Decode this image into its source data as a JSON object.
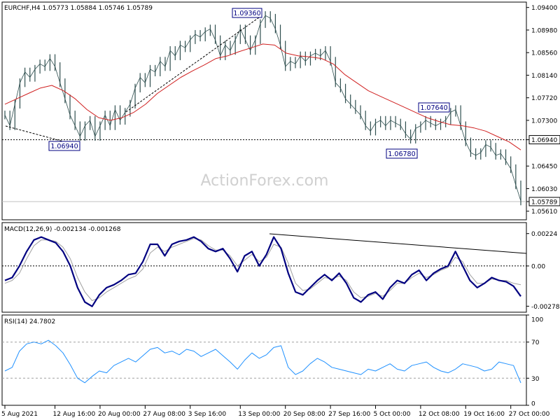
{
  "chart_data": [
    {
      "type": "line",
      "panel": "price",
      "header": {
        "symbol": "EURCHF,H4",
        "open": "1.05773",
        "high": "1.05884",
        "low": "1.05746",
        "close": "1.05789"
      },
      "watermark": "ActionForex.com",
      "ylim": [
        1.0545,
        1.095
      ],
      "y_ticks": [
        {
          "value": 1.094,
          "label": "1.09400"
        },
        {
          "value": 1.0898,
          "label": "1.08980"
        },
        {
          "value": 1.0856,
          "label": "1.08560"
        },
        {
          "value": 1.0814,
          "label": "1.08140"
        },
        {
          "value": 1.0772,
          "label": "1.07720"
        },
        {
          "value": 1.073,
          "label": "1.07300"
        },
        {
          "value": 1.0694,
          "label": "1.06940",
          "highlight": true
        },
        {
          "value": 1.0645,
          "label": "1.06450"
        },
        {
          "value": 1.0603,
          "label": "1.06030"
        },
        {
          "value": 1.05789,
          "label": "1.05789",
          "highlight": true
        },
        {
          "value": 1.0561,
          "label": "1.05610"
        }
      ],
      "series": [
        {
          "name": "price",
          "color": "#2f4f4f",
          "values": [
            1.074,
            1.072,
            1.076,
            1.08,
            1.082,
            1.081,
            1.0825,
            1.0835,
            1.083,
            1.0845,
            1.083,
            1.08,
            1.077,
            1.074,
            1.072,
            1.07,
            1.072,
            1.073,
            1.07,
            1.072,
            1.074,
            1.072,
            1.075,
            1.073,
            1.0745,
            1.076,
            1.079,
            1.081,
            1.08,
            1.0825,
            1.082,
            1.084,
            1.083,
            1.086,
            1.085,
            1.087,
            1.0865,
            1.088,
            1.089,
            1.0885,
            1.0895,
            1.09,
            1.088,
            1.085,
            1.087,
            1.086,
            1.088,
            1.09,
            1.088,
            1.086,
            1.088,
            1.091,
            1.0925,
            1.092,
            1.09,
            1.087,
            1.083,
            1.084,
            1.0835,
            1.085,
            1.084,
            1.085,
            1.0855,
            1.085,
            1.086,
            1.084,
            1.08,
            1.079,
            1.077,
            1.076,
            1.075,
            1.074,
            1.072,
            1.071,
            1.0725,
            1.073,
            1.072,
            1.073,
            1.0725,
            1.072,
            1.0705,
            1.0695,
            1.0715,
            1.072,
            1.073,
            1.0725,
            1.072,
            1.0725,
            1.073,
            1.0745,
            1.075,
            1.072,
            1.069,
            1.067,
            1.0665,
            1.067,
            1.0685,
            1.068,
            1.0665,
            1.0668,
            1.0655,
            1.064,
            1.061,
            1.058
          ]
        },
        {
          "name": "ma",
          "color": "#d02020",
          "values": [
            1.076,
            1.077,
            1.078,
            1.079,
            1.0795,
            1.0785,
            1.077,
            1.075,
            1.0735,
            1.073,
            1.0735,
            1.0745,
            1.076,
            1.078,
            1.0795,
            1.081,
            1.0822,
            1.0833,
            1.0845,
            1.085,
            1.0858,
            1.0865,
            1.0872,
            1.087,
            1.0855,
            1.085,
            1.0848,
            1.0845,
            1.0835,
            1.0815,
            1.08,
            1.0785,
            1.0775,
            1.0765,
            1.0755,
            1.0745,
            1.0735,
            1.0728,
            1.0722,
            1.072,
            1.0716,
            1.071,
            1.07,
            1.069,
            1.0675
          ]
        }
      ],
      "annotations": [
        {
          "label": "1.09360",
          "value": 1.0936
        },
        {
          "label": "1.06940",
          "value": 1.0694
        },
        {
          "label": "1.07640",
          "value": 1.0764
        },
        {
          "label": "1.06780",
          "value": 1.0678
        }
      ],
      "hline": 1.0694
    },
    {
      "type": "line",
      "panel": "macd",
      "label": "MACD(12,26,9) -0.002134 -0.001268",
      "ylim": [
        -0.0032,
        0.003
      ],
      "y_ticks": [
        {
          "value": 0.00224,
          "label": "0.00224"
        },
        {
          "value": 0.0,
          "label": "0.00"
        },
        {
          "value": -0.002785,
          "label": "-0.002785"
        }
      ],
      "series": [
        {
          "name": "macd",
          "color": "#000080",
          "values": [
            -0.001,
            -0.0008,
            0.0,
            0.001,
            0.0018,
            0.002,
            0.0018,
            0.0016,
            0.001,
            0.0,
            -0.0015,
            -0.0025,
            -0.0028,
            -0.002,
            -0.0015,
            -0.0013,
            -0.001,
            -0.0006,
            -0.0005,
            0.0003,
            0.0015,
            0.0015,
            0.0007,
            0.0015,
            0.0017,
            0.0018,
            0.002,
            0.0017,
            0.0012,
            0.001,
            0.0012,
            0.0005,
            -0.0004,
            0.0007,
            0.001,
            0.0,
            0.0008,
            0.002,
            0.0012,
            -0.0005,
            -0.0018,
            -0.002,
            -0.0015,
            -0.001,
            -0.0006,
            -0.001,
            -0.0005,
            -0.0012,
            -0.0022,
            -0.0025,
            -0.002,
            -0.0018,
            -0.0023,
            -0.0015,
            -0.001,
            -0.0012,
            -0.0006,
            -0.0003,
            -0.001,
            -0.0005,
            -0.0002,
            0.0,
            0.001,
            0.0,
            -0.001,
            -0.0015,
            -0.0012,
            -0.0008,
            -0.001,
            -0.0011,
            -0.0014,
            -0.0021
          ]
        },
        {
          "name": "signal",
          "color": "#a0a0a0",
          "values": [
            -0.0012,
            -0.001,
            -0.0005,
            0.0005,
            0.0014,
            0.0018,
            0.0018,
            0.0017,
            0.0013,
            0.0005,
            -0.0008,
            -0.0018,
            -0.0024,
            -0.0022,
            -0.0018,
            -0.0015,
            -0.0012,
            -0.0009,
            -0.0007,
            -0.0002,
            0.0009,
            0.0013,
            0.001,
            0.0013,
            0.0015,
            0.0017,
            0.0019,
            0.0018,
            0.0014,
            0.0011,
            0.0011,
            0.0007,
            0.0,
            0.0004,
            0.0008,
            0.0003,
            0.0006,
            0.0015,
            0.0013,
            0.0002,
            -0.0012,
            -0.0017,
            -0.0016,
            -0.0012,
            -0.0008,
            -0.0009,
            -0.0007,
            -0.001,
            -0.0018,
            -0.0022,
            -0.0021,
            -0.0019,
            -0.0021,
            -0.0017,
            -0.0012,
            -0.0012,
            -0.0008,
            -0.0005,
            -0.0008,
            -0.0006,
            -0.0003,
            -0.0001,
            0.0006,
            0.0003,
            -0.0006,
            -0.0012,
            -0.0012,
            -0.0009,
            -0.001,
            -0.001,
            -0.0012,
            -0.0013
          ]
        }
      ]
    },
    {
      "type": "line",
      "panel": "rsi",
      "label": "RSI(14) 24.7802",
      "ylim": [
        0,
        100
      ],
      "y_ticks": [
        {
          "value": 100,
          "label": "100"
        },
        {
          "value": 70,
          "label": "70"
        },
        {
          "value": 30,
          "label": "30"
        },
        {
          "value": 0,
          "label": "0"
        }
      ],
      "series": [
        {
          "name": "rsi",
          "color": "#1e90ff",
          "values": [
            38,
            42,
            60,
            68,
            70,
            68,
            72,
            66,
            58,
            45,
            30,
            25,
            32,
            38,
            36,
            44,
            48,
            52,
            48,
            55,
            62,
            64,
            58,
            60,
            56,
            62,
            60,
            54,
            58,
            62,
            55,
            48,
            40,
            50,
            58,
            52,
            56,
            64,
            66,
            42,
            34,
            38,
            46,
            52,
            48,
            42,
            40,
            38,
            36,
            34,
            40,
            38,
            42,
            46,
            40,
            38,
            44,
            46,
            48,
            42,
            38,
            36,
            40,
            46,
            44,
            42,
            38,
            40,
            48,
            46,
            44,
            24.78
          ]
        }
      ]
    }
  ],
  "x_ticks": [
    {
      "label": "5 Aug 2021",
      "index": 0
    },
    {
      "label": "12 Aug 16:00",
      "index": 10
    },
    {
      "label": "20 Aug 00:00",
      "index": 19
    },
    {
      "label": "27 Aug 08:00",
      "index": 28
    },
    {
      "label": "3 Sep 16:00",
      "index": 37
    },
    {
      "label": "13 Sep 00:00",
      "index": 47
    },
    {
      "label": "20 Sep 08:00",
      "index": 56
    },
    {
      "label": "27 Sep 16:00",
      "index": 65
    },
    {
      "label": "5 Oct 00:00",
      "index": 74
    },
    {
      "label": "12 Oct 08:00",
      "index": 83
    },
    {
      "label": "19 Oct 16:00",
      "index": 92
    },
    {
      "label": "27 Oct 00:00",
      "index": 101
    }
  ]
}
